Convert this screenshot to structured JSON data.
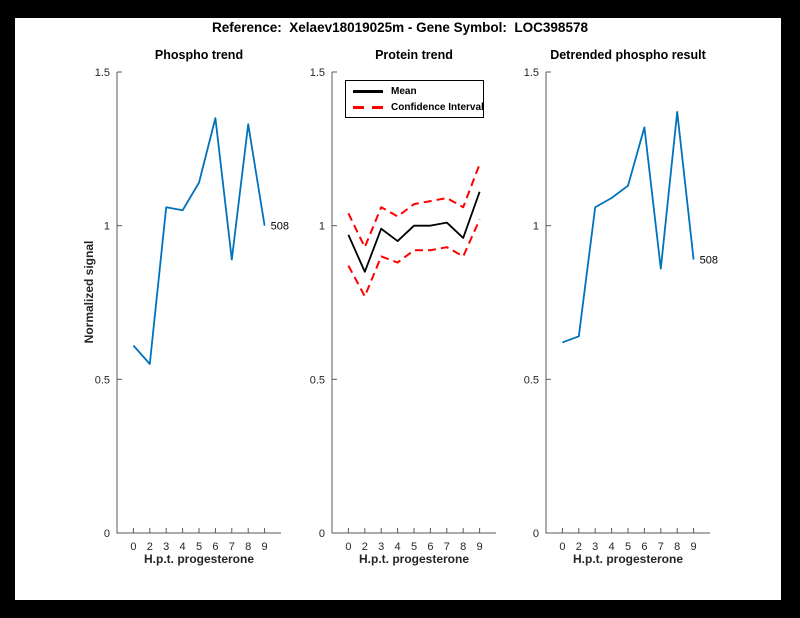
{
  "figure": {
    "title": "Reference:  Xelaev18019025m - Gene Symbol:  LOC398578",
    "frame_color": "#000000",
    "background_color": "#ffffff",
    "axis_color": "#5a5a5a",
    "tick_label_color": "#262626"
  },
  "chart_data": [
    {
      "type": "line",
      "title": "Phospho trend",
      "xlabel": "H.p.t. progesterone",
      "ylabel": "Normalized signal",
      "categories": [
        "0",
        "2",
        "3",
        "4",
        "5",
        "6",
        "7",
        "8",
        "9"
      ],
      "ylim": [
        0,
        1.5
      ],
      "yticks": [
        0,
        0.5,
        1,
        1.5
      ],
      "ytick_labels": [
        "0",
        "0.5",
        "1",
        "1.5"
      ],
      "grid": false,
      "legend": null,
      "series": [
        {
          "name": "phospho-signal",
          "color": "#0072BD",
          "dash": "solid",
          "width": 1.8,
          "values": [
            0.61,
            0.55,
            1.06,
            1.05,
            1.14,
            1.35,
            0.89,
            1.33,
            1.0
          ],
          "end_label": "508"
        }
      ]
    },
    {
      "type": "line",
      "title": "Protein trend",
      "xlabel": "H.p.t. progesterone",
      "ylabel": "",
      "categories": [
        "0",
        "2",
        "3",
        "4",
        "5",
        "6",
        "7",
        "8",
        "9"
      ],
      "ylim": [
        0,
        1.5
      ],
      "yticks": [
        0,
        0.5,
        1,
        1.5
      ],
      "ytick_labels": [
        "0",
        "0.5",
        "1",
        "1.5"
      ],
      "grid": false,
      "legend": {
        "position": "top-left",
        "entries": [
          {
            "label": "Mean",
            "color": "#000000",
            "dash": "solid"
          },
          {
            "label": "Confidence Interval",
            "color": "#ff0000",
            "dash": "dashed"
          }
        ]
      },
      "series": [
        {
          "name": "confidence-upper",
          "color": "#ff0000",
          "dash": "dashed",
          "width": 2,
          "values": [
            1.04,
            0.93,
            1.06,
            1.03,
            1.07,
            1.08,
            1.09,
            1.06,
            1.2
          ],
          "end_label": null
        },
        {
          "name": "confidence-lower",
          "color": "#ff0000",
          "dash": "dashed",
          "width": 2,
          "values": [
            0.87,
            0.77,
            0.9,
            0.88,
            0.92,
            0.92,
            0.93,
            0.9,
            1.02
          ],
          "end_label": null
        },
        {
          "name": "mean",
          "color": "#000000",
          "dash": "solid",
          "width": 1.8,
          "values": [
            0.97,
            0.85,
            0.99,
            0.95,
            1.0,
            1.0,
            1.01,
            0.96,
            1.11
          ],
          "end_label": null
        }
      ]
    },
    {
      "type": "line",
      "title": "Detrended phospho result",
      "xlabel": "H.p.t. progesterone",
      "ylabel": "",
      "categories": [
        "0",
        "2",
        "3",
        "4",
        "5",
        "6",
        "7",
        "8",
        "9"
      ],
      "ylim": [
        0,
        1.5
      ],
      "yticks": [
        0,
        0.5,
        1,
        1.5
      ],
      "ytick_labels": [
        "0",
        "0.5",
        "1",
        "1.5"
      ],
      "grid": false,
      "legend": null,
      "series": [
        {
          "name": "detrended-phospho-signal",
          "color": "#0072BD",
          "dash": "solid",
          "width": 1.8,
          "values": [
            0.62,
            0.64,
            1.06,
            1.09,
            1.13,
            1.32,
            0.86,
            1.37,
            0.89
          ],
          "end_label": "508"
        }
      ]
    }
  ]
}
